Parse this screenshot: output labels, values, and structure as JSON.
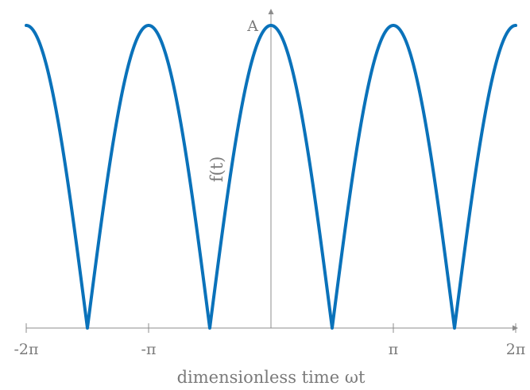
{
  "chart_data": {
    "type": "line",
    "title": "",
    "xlabel": "dimensionless time ωt",
    "ylabel": "f(t)",
    "xlim": [
      -6.2832,
      6.2832
    ],
    "ylim": [
      0,
      1
    ],
    "x_ticks": [
      {
        "value": -6.2832,
        "label": "-2π"
      },
      {
        "value": -3.1416,
        "label": "-π"
      },
      {
        "value": 3.1416,
        "label": "π"
      },
      {
        "value": 6.2832,
        "label": "2π"
      }
    ],
    "y_ticks": [
      {
        "value": 1,
        "label": "A"
      }
    ],
    "grid": false,
    "series": [
      {
        "function": "A·|cos(t)|",
        "color": "#0a72ba",
        "x": [
          -6.2832,
          -5.8905,
          -5.4978,
          -5.1051,
          -4.7124,
          -4.3197,
          -3.927,
          -3.5343,
          -3.1416,
          -2.7489,
          -2.3562,
          -1.9635,
          -1.5708,
          -1.1781,
          -0.7854,
          -0.3927,
          0,
          0.3927,
          0.7854,
          1.1781,
          1.5708,
          1.9635,
          2.3562,
          2.7489,
          3.1416,
          3.5343,
          3.927,
          4.3197,
          4.7124,
          5.1051,
          5.4978,
          5.8905,
          6.2832
        ],
        "y": [
          1,
          0.924,
          0.707,
          0.383,
          0,
          0.383,
          0.707,
          0.924,
          1,
          0.924,
          0.707,
          0.383,
          0,
          0.383,
          0.707,
          0.924,
          1,
          0.924,
          0.707,
          0.383,
          0,
          0.383,
          0.707,
          0.924,
          1,
          0.924,
          0.707,
          0.383,
          0,
          0.383,
          0.707,
          0.924,
          1
        ]
      }
    ]
  }
}
